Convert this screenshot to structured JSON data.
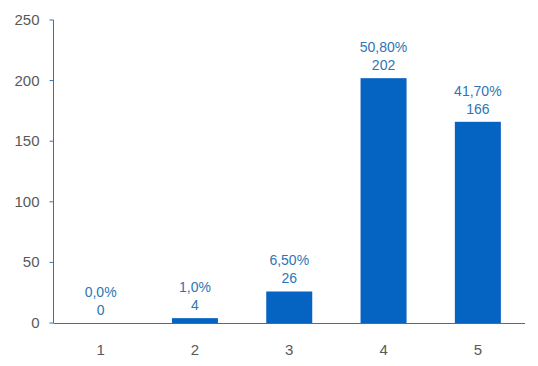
{
  "chart_data": {
    "type": "bar",
    "categories": [
      "1",
      "2",
      "3",
      "4",
      "5"
    ],
    "values": [
      0,
      4,
      26,
      202,
      166
    ],
    "percentages": [
      0,
      1,
      6.5,
      50.8,
      41.7
    ],
    "percentage_labels": [
      "0,0%",
      "1,0%",
      "6,50%",
      "50,80%",
      "41,70%"
    ],
    "color": "#0563c1",
    "ylim": [
      0,
      250
    ],
    "yticks": [
      0,
      50,
      100,
      150,
      200,
      250
    ],
    "grid": false,
    "data_labels": true
  }
}
